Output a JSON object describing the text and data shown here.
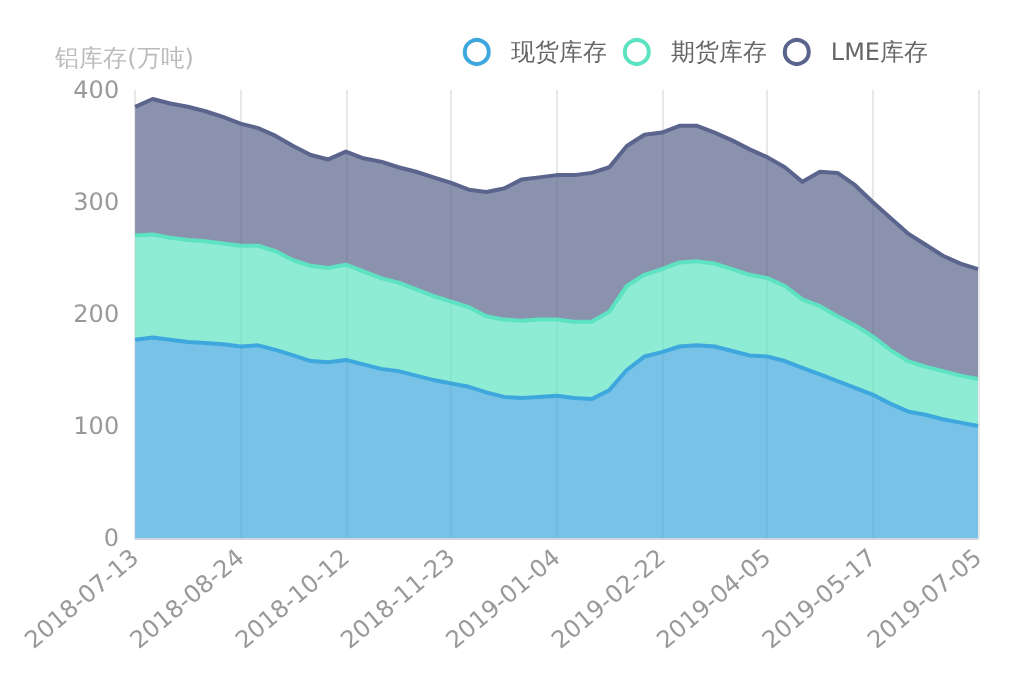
{
  "chart_data": {
    "type": "area",
    "ylabel": "铝库存(万吨)",
    "stacked": true,
    "grid": "x",
    "legend": "top right",
    "categories": [
      "2018-07-13",
      null,
      null,
      null,
      null,
      null,
      "2018-08-24",
      null,
      null,
      null,
      null,
      null,
      "2018-10-12",
      null,
      null,
      null,
      null,
      null,
      "2018-11-23",
      null,
      null,
      null,
      null,
      null,
      "2019-01-04",
      null,
      null,
      null,
      null,
      null,
      "2019-02-22",
      null,
      null,
      null,
      null,
      null,
      "2019-04-05",
      null,
      null,
      null,
      null,
      null,
      "2019-05-17",
      null,
      null,
      null,
      null,
      null,
      "2019-07-05"
    ],
    "ylim": [
      0,
      400
    ],
    "yticks": [
      0,
      100,
      200,
      300,
      400
    ],
    "series": [
      {
        "name": "现货库存",
        "color": "#3ea8de",
        "values": [
          177,
          179,
          177,
          175,
          174,
          173,
          171,
          172,
          168,
          163,
          158,
          157,
          159,
          155,
          151,
          149,
          145,
          141,
          138,
          135,
          130,
          126,
          125,
          126,
          127,
          125,
          124,
          132,
          150,
          162,
          166,
          171,
          172,
          171,
          167,
          163,
          162,
          158,
          152,
          146,
          140,
          134,
          128,
          120,
          113,
          110,
          106,
          103,
          100
        ]
      },
      {
        "name": "期货库存",
        "color": "#5ee3c2",
        "values": [
          93,
          92,
          91,
          91,
          91,
          90,
          90,
          89,
          88,
          85,
          85,
          84,
          85,
          83,
          81,
          79,
          77,
          75,
          73,
          71,
          68,
          69,
          69,
          69,
          68,
          68,
          69,
          70,
          75,
          73,
          74,
          75,
          75,
          74,
          73,
          72,
          70,
          67,
          61,
          61,
          58,
          56,
          52,
          48,
          45,
          43,
          43,
          42,
          42
        ]
      },
      {
        "name": "LME库存",
        "color": "#5a648c",
        "values": [
          115,
          121,
          120,
          119,
          116,
          113,
          109,
          105,
          103,
          102,
          99,
          97,
          101,
          101,
          104,
          103,
          105,
          106,
          106,
          105,
          111,
          117,
          126,
          127,
          129,
          131,
          133,
          129,
          125,
          125,
          122,
          122,
          121,
          117,
          115,
          112,
          108,
          106,
          105,
          120,
          128,
          125,
          120,
          118,
          114,
          109,
          103,
          100,
          98
        ]
      }
    ]
  }
}
